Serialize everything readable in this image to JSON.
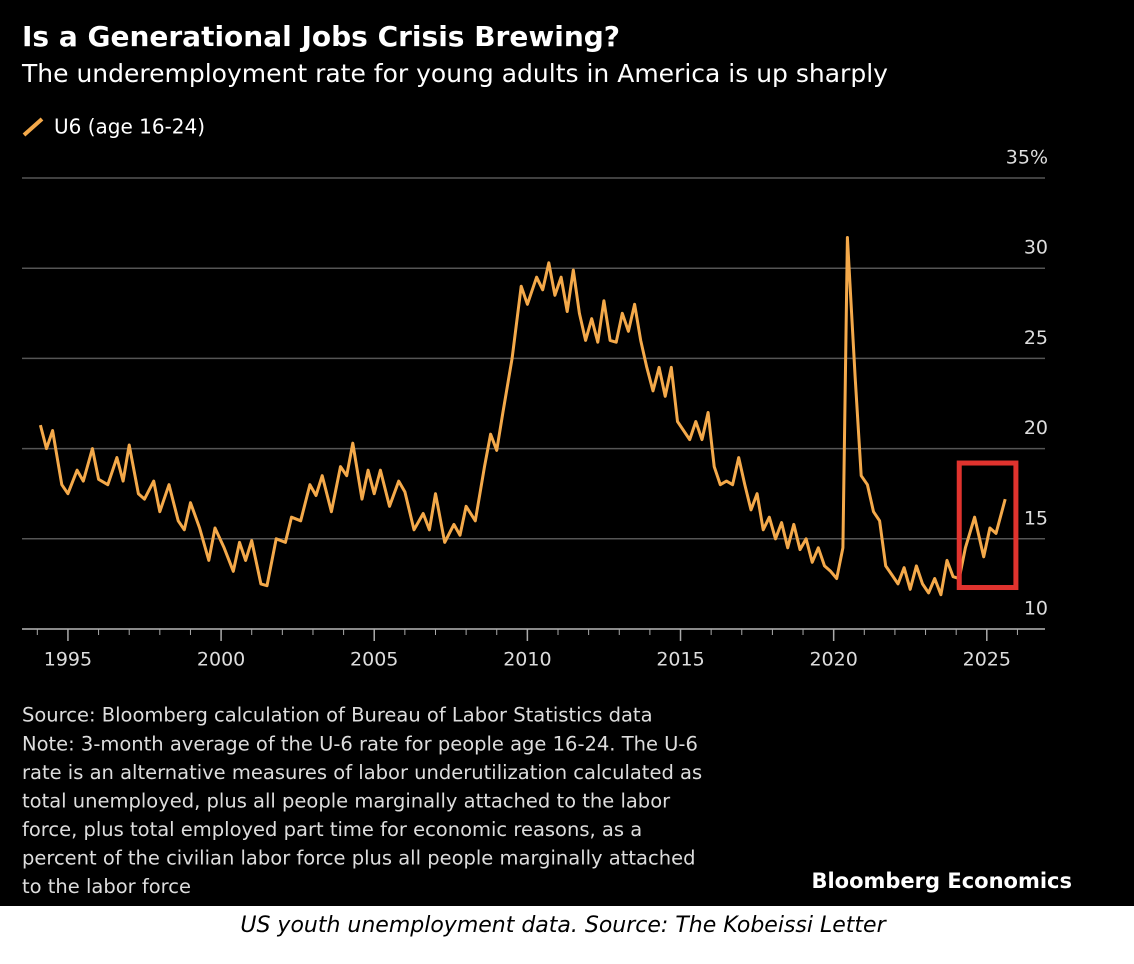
{
  "chart_data": {
    "type": "line",
    "title": "Is a Generational Jobs Crisis Brewing?",
    "subtitle": "The underemployment rate for young adults in America is up sharply",
    "x": [
      1994.1,
      1994.3,
      1994.5,
      1994.8,
      1995.0,
      1995.3,
      1995.5,
      1995.8,
      1996.0,
      1996.3,
      1996.6,
      1996.8,
      1997.0,
      1997.3,
      1997.5,
      1997.8,
      1998.0,
      1998.3,
      1998.6,
      1998.8,
      1999.0,
      1999.3,
      1999.6,
      1999.8,
      2000.1,
      2000.4,
      2000.6,
      2000.8,
      2001.0,
      2001.3,
      2001.5,
      2001.8,
      2002.1,
      2002.3,
      2002.6,
      2002.9,
      2003.1,
      2003.3,
      2003.6,
      2003.9,
      2004.1,
      2004.3,
      2004.6,
      2004.8,
      2005.0,
      2005.2,
      2005.5,
      2005.8,
      2006.0,
      2006.3,
      2006.6,
      2006.8,
      2007.0,
      2007.3,
      2007.6,
      2007.8,
      2008.0,
      2008.3,
      2008.6,
      2008.8,
      2009.0,
      2009.2,
      2009.5,
      2009.8,
      2010.0,
      2010.3,
      2010.5,
      2010.7,
      2010.9,
      2011.1,
      2011.3,
      2011.5,
      2011.7,
      2011.9,
      2012.1,
      2012.3,
      2012.5,
      2012.7,
      2012.9,
      2013.1,
      2013.3,
      2013.5,
      2013.7,
      2013.9,
      2014.1,
      2014.3,
      2014.5,
      2014.7,
      2014.9,
      2015.1,
      2015.3,
      2015.5,
      2015.7,
      2015.9,
      2016.1,
      2016.3,
      2016.5,
      2016.7,
      2016.9,
      2017.1,
      2017.3,
      2017.5,
      2017.7,
      2017.9,
      2018.1,
      2018.3,
      2018.5,
      2018.7,
      2018.9,
      2019.1,
      2019.3,
      2019.5,
      2019.7,
      2019.9,
      2020.1,
      2020.3,
      2020.45,
      2020.7,
      2020.9,
      2021.1,
      2021.3,
      2021.5,
      2021.7,
      2021.9,
      2022.1,
      2022.3,
      2022.5,
      2022.7,
      2022.9,
      2023.1,
      2023.3,
      2023.5,
      2023.7,
      2023.9,
      2024.1,
      2024.3,
      2024.6,
      2024.9,
      2025.1,
      2025.3,
      2025.6
    ],
    "series": [
      {
        "name": "U6 (age 16-24)",
        "color": "#f4a94a",
        "values": [
          21.3,
          20,
          21,
          18,
          17.5,
          18.8,
          18.2,
          20,
          18.3,
          18,
          19.5,
          18.2,
          20.2,
          17.5,
          17.2,
          18.2,
          16.5,
          18,
          16,
          15.5,
          17,
          15.6,
          13.8,
          15.6,
          14.5,
          13.2,
          14.8,
          13.8,
          14.9,
          12.5,
          12.4,
          15,
          14.8,
          16.2,
          16,
          18,
          17.4,
          18.5,
          16.5,
          19,
          18.5,
          20.3,
          17.2,
          18.8,
          17.5,
          18.8,
          16.8,
          18.2,
          17.6,
          15.5,
          16.4,
          15.5,
          17.5,
          14.8,
          15.8,
          15.2,
          16.8,
          16,
          19,
          20.8,
          19.9,
          22,
          25,
          29,
          28,
          29.5,
          28.8,
          30.3,
          28.5,
          29.5,
          27.6,
          29.9,
          27.5,
          26,
          27.2,
          25.9,
          28.2,
          26,
          25.9,
          27.5,
          26.5,
          28,
          26,
          24.5,
          23.2,
          24.5,
          22.9,
          24.5,
          21.5,
          21,
          20.5,
          21.5,
          20.5,
          22,
          19,
          18,
          18.2,
          18,
          19.5,
          18,
          16.6,
          17.5,
          15.5,
          16.2,
          15,
          15.9,
          14.5,
          15.8,
          14.4,
          15,
          13.7,
          14.5,
          13.5,
          13.2,
          12.8,
          14.5,
          31.7,
          24,
          18.5,
          18,
          16.5,
          16,
          13.5,
          13,
          12.5,
          13.4,
          12.2,
          13.5,
          12.5,
          12,
          12.8,
          11.9,
          13.8,
          12.9,
          12.8,
          14.5,
          16.2,
          14,
          15.6,
          15.3,
          17.2
        ]
      }
    ],
    "xlim": [
      1993.5,
      2026.9
    ],
    "xticks": [
      1995,
      2000,
      2005,
      2010,
      2015,
      2020,
      2025
    ],
    "xminorticks": [
      1994,
      1995,
      1996,
      1997,
      1998,
      1999,
      2000,
      2001,
      2002,
      2003,
      2004,
      2005,
      2006,
      2007,
      2008,
      2009,
      2010,
      2011,
      2012,
      2013,
      2014,
      2015,
      2016,
      2017,
      2018,
      2019,
      2020,
      2021,
      2022,
      2023,
      2024,
      2025,
      2026
    ],
    "ylim": [
      10,
      35
    ],
    "yticks": [
      10,
      15,
      20,
      25,
      30,
      {
        "value": 35,
        "label": "35%"
      }
    ],
    "grid": true,
    "highlight": {
      "x": [
        2024.1,
        2025.95
      ],
      "y": [
        12.3,
        19.2
      ],
      "color": "#e0332e"
    },
    "source": "Source: Bloomberg calculation of Bureau of Labor Statistics data",
    "note_lines": [
      "Note: 3-month average of the U-6 rate for people age 16-24. The U-6",
      "rate is an alternative measures of labor underutilization calculated as",
      "total unemployed, plus all people marginally attached to the labor",
      "force, plus total employed part time for economic reasons, as a",
      "percent of the civilian labor force plus all people marginally attached",
      "to the labor force"
    ],
    "branding": "Bloomberg Economics",
    "caption": "US youth unemployment data. Source: The Kobeissi Letter"
  }
}
